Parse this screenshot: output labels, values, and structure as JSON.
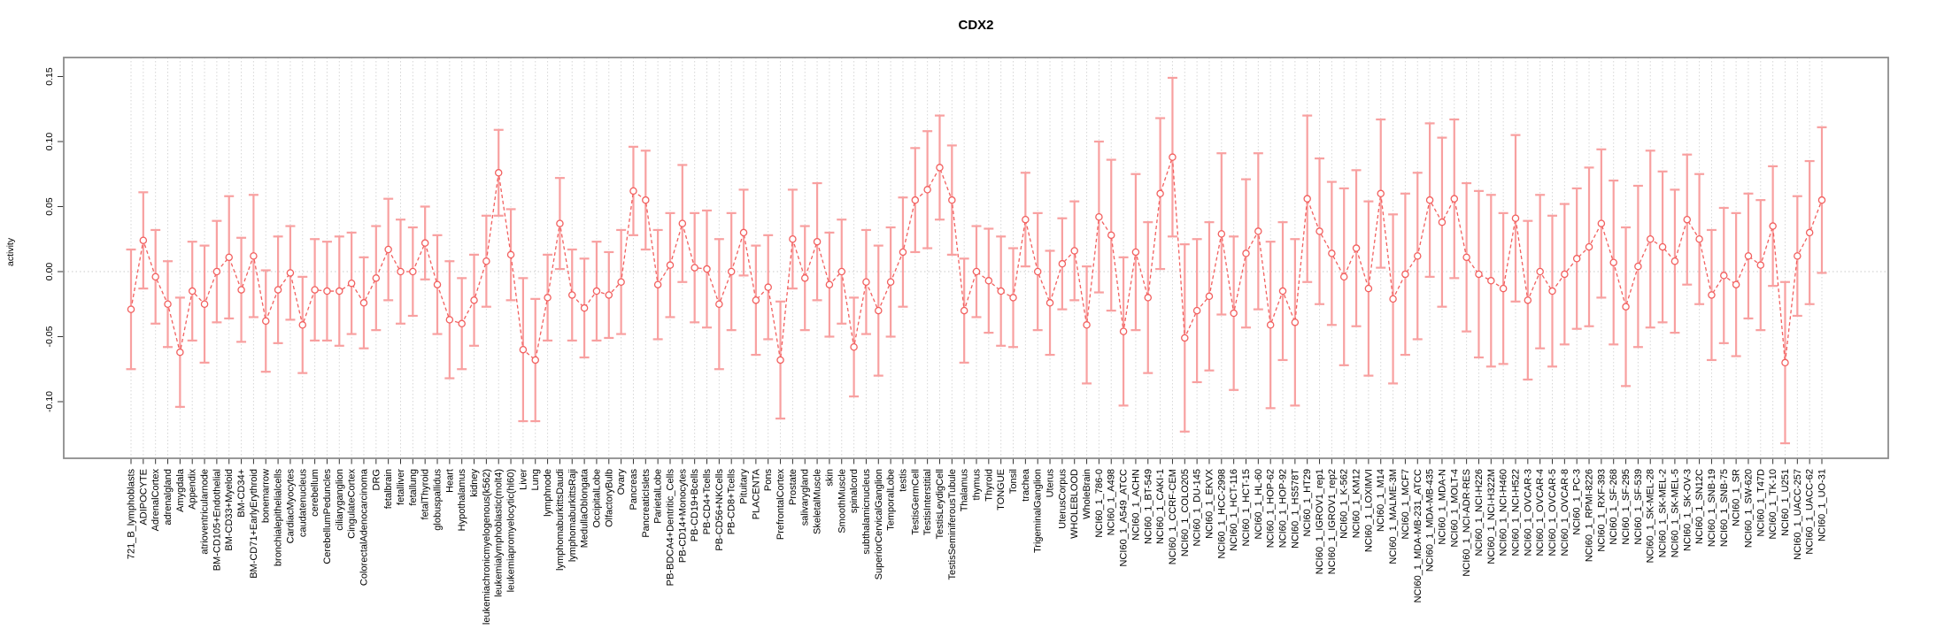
{
  "title": "CDX2",
  "chart_data": {
    "type": "line",
    "title": "CDX2",
    "xlabel": "",
    "ylabel": "activity",
    "ylim": [
      -0.142,
      0.162
    ],
    "yticks": [
      0.15,
      0.1,
      0.05,
      0.0,
      -0.05,
      -0.1
    ],
    "ytick_labels": [
      "0.15",
      "0.10",
      "0.05",
      "0.00",
      "-0.05",
      "-0.10"
    ],
    "grid": {
      "vertical_per_category": true,
      "zero_line": true,
      "style": "dotted"
    },
    "legend": "none",
    "x_tick_label_rotation": 90,
    "marker": "open-circle",
    "line_style": "dashed",
    "error_bars": true,
    "colors": {
      "series": "#f2605f",
      "error_bar": "#f8a0a0",
      "gridline": "#d6d6d6",
      "zero_line": "#c9c9c9",
      "box": "#8c8c8c",
      "tick": "#333333",
      "text": "#000000",
      "background": "#ffffff"
    },
    "categories": [
      "721_B_lymphoblasts",
      "ADIPOCYTE",
      "AdrenalCortex",
      "adrenalgland",
      "Amygdala",
      "Appendix",
      "atrioventricularnode",
      "BM-CD105+Endothelial",
      "BM-CD33+Myeloid",
      "BM-CD34+",
      "BM-CD71+EarlyErythroid",
      "bonemarrow",
      "bronchialepithelialcells",
      "CardiacMyocytes",
      "caudatenucleus",
      "cerebellum",
      "CerebellumPeduncles",
      "ciliaryganglion",
      "CingulateCortex",
      "ColorectalAdenocarcinoma",
      "DRG",
      "fetalbrain",
      "fetalliver",
      "fetallung",
      "fetalThyroid",
      "globuspallidus",
      "Heart",
      "Hypothalamus",
      "kidney",
      "leukemiachronicmyelogenous(k562)",
      "leukemialymphoblastic(molt4)",
      "leukemiapromyelocytic(hl60)",
      "Liver",
      "Lung",
      "lymphnode",
      "lymphomaburkittsDaudi",
      "lymphomaburkittsRaji",
      "MedullaOblongata",
      "OccipitalLobe",
      "OlfactoryBulb",
      "Ovary",
      "Pancreas",
      "PancreaticIslets",
      "ParietalLobe",
      "PB-BDCA4+Dentritic_Cells",
      "PB-CD14+Monocytes",
      "PB-CD19+Bcells",
      "PB-CD4+Tcells",
      "PB-CD56+NKCells",
      "PB-CD8+Tcells",
      "Pituitary",
      "PLACENTA",
      "Pons",
      "PrefrontalCortex",
      "Prostate",
      "salivarygland",
      "SkeletalMuscle",
      "skin",
      "SmoothMuscle",
      "spinalcord",
      "subthalamicnucleus",
      "SuperiorCervicalGanglion",
      "TemporalLobe",
      "testis",
      "TestisGermCell",
      "TestisInterstitial",
      "TestisLeydigCell",
      "TestisSeminiferousTubule",
      "Thalamus",
      "thymus",
      "Thyroid",
      "TONGUE",
      "Tonsil",
      "trachea",
      "TrigeminalGanglion",
      "Uterus",
      "UterusCorpus",
      "WHOLEBLOOD",
      "WholeBrain",
      "NCI60_1_786-0",
      "NCI60_1_A498",
      "NCI60_1_A549_ATCC",
      "NCI60_1_ACHN",
      "NCI60_1_BT-549",
      "NCI60_1_CAKI-1",
      "NCI60_1_CCRF-CEM",
      "NCI60_1_COLO205",
      "NCI60_1_DU-145",
      "NCI60_1_EKVX",
      "NCI60_1_HCC-2998",
      "NCI60_1_HCT-116",
      "NCI60_1_HCT-15",
      "NCI60_1_HL-60",
      "NCI60_1_HOP-62",
      "NCI60_1_HOP-92",
      "NCI60_1_HS578T",
      "NCI60_1_HT29",
      "NCI60_1_IGROV1_rep1",
      "NCI60_1_IGROV1_rep2",
      "NCI60_1_K-562",
      "NCI60_1_KM12",
      "NCI60_1_LOXIMVI",
      "NCI60_1_M14",
      "NCI60_1_MALME-3M",
      "NCI60_1_MCF7",
      "NCI60_1_MDA-MB-231_ATCC",
      "NCI60_1_MDA-MB-435",
      "NCI60_1_MDA-N",
      "NCI60_1_MOLT-4",
      "NCI60_1_NCI-ADR-RES",
      "NCI60_1_NCI-H226",
      "NCI60_1_NCI-H322M",
      "NCI60_1_NCI-H460",
      "NCI60_1_NCI-H522",
      "NCI60_1_OVCAR-3",
      "NCI60_1_OVCAR-4",
      "NCI60_1_OVCAR-5",
      "NCI60_1_OVCAR-8",
      "NCI60_1_PC-3",
      "NCI60_1_RPMI-8226",
      "NCI60_1_RXF-393",
      "NCI60_1_SF-268",
      "NCI60_1_SF-295",
      "NCI60_1_SF-539",
      "NCI60_1_SK-MEL-28",
      "NCI60_1_SK-MEL-2",
      "NCI60_1_SK-MEL-5",
      "NCI60_1_SK-OV-3",
      "NCI60_1_SN12C",
      "NCI60_1_SNB-19",
      "NCI60_1_SNB-75",
      "NCI60_1_SR",
      "NCI60_1_SW-620",
      "NCI60_1_T47D",
      "NCI60_1_TK-10",
      "NCI60_1_U251",
      "NCI60_1_UACC-257",
      "NCI60_1_UACC-62",
      "NCI60_1_UO-31"
    ],
    "series": [
      {
        "name": "activity",
        "values": [
          -0.029,
          0.024,
          -0.004,
          -0.025,
          -0.062,
          -0.015,
          -0.025,
          0.0,
          0.011,
          -0.014,
          0.012,
          -0.038,
          -0.014,
          -0.001,
          -0.041,
          -0.014,
          -0.015,
          -0.015,
          -0.009,
          -0.024,
          -0.005,
          0.017,
          0.0,
          0.0,
          0.022,
          -0.01,
          -0.037,
          -0.04,
          -0.022,
          0.008,
          0.076,
          0.013,
          -0.06,
          -0.068,
          -0.02,
          0.037,
          -0.018,
          -0.028,
          -0.015,
          -0.018,
          -0.008,
          0.062,
          0.055,
          -0.01,
          0.005,
          0.037,
          0.003,
          0.002,
          -0.025,
          0.0,
          0.03,
          -0.022,
          -0.012,
          -0.068,
          0.025,
          -0.005,
          0.023,
          -0.01,
          0.0,
          -0.058,
          -0.008,
          -0.03,
          -0.008,
          0.015,
          0.055,
          0.063,
          0.08,
          0.055,
          -0.03,
          0.0,
          -0.007,
          -0.015,
          -0.02,
          0.04,
          0.0,
          -0.024,
          0.006,
          0.016,
          -0.041,
          0.042,
          0.028,
          -0.046,
          0.015,
          -0.02,
          0.06,
          0.088,
          -0.051,
          -0.03,
          -0.019,
          0.029,
          -0.032,
          0.014,
          0.031,
          -0.041,
          -0.015,
          -0.039,
          0.056,
          0.031,
          0.014,
          -0.004,
          0.018,
          -0.013,
          0.06,
          -0.021,
          -0.002,
          0.012,
          0.055,
          0.038,
          0.056,
          0.011,
          -0.002,
          -0.007,
          -0.013,
          0.041,
          -0.022,
          0.0,
          -0.015,
          -0.002,
          0.01,
          0.019,
          0.037,
          0.007,
          -0.027,
          0.004,
          0.025,
          0.019,
          0.008,
          0.04,
          0.025,
          -0.018,
          -0.003,
          -0.01,
          0.012,
          0.005,
          0.035,
          -0.07,
          0.012,
          0.03,
          0.055
        ],
        "errors": [
          0.046,
          0.037,
          0.036,
          0.033,
          0.042,
          0.038,
          0.045,
          0.039,
          0.047,
          0.04,
          0.047,
          0.039,
          0.041,
          0.036,
          0.037,
          0.039,
          0.038,
          0.042,
          0.039,
          0.035,
          0.04,
          0.039,
          0.04,
          0.034,
          0.028,
          0.038,
          0.045,
          0.035,
          0.035,
          0.035,
          0.033,
          0.035,
          0.055,
          0.047,
          0.033,
          0.035,
          0.035,
          0.038,
          0.038,
          0.033,
          0.04,
          0.034,
          0.038,
          0.042,
          0.04,
          0.045,
          0.042,
          0.045,
          0.05,
          0.045,
          0.033,
          0.042,
          0.04,
          0.045,
          0.038,
          0.04,
          0.045,
          0.04,
          0.04,
          0.038,
          0.04,
          0.05,
          0.042,
          0.042,
          0.04,
          0.045,
          0.04,
          0.042,
          0.04,
          0.035,
          0.04,
          0.042,
          0.038,
          0.036,
          0.045,
          0.04,
          0.035,
          0.038,
          0.045,
          0.058,
          0.058,
          0.057,
          0.06,
          0.058,
          0.058,
          0.061,
          0.072,
          0.055,
          0.057,
          0.062,
          0.059,
          0.057,
          0.06,
          0.064,
          0.053,
          0.064,
          0.064,
          0.056,
          0.055,
          0.068,
          0.06,
          0.067,
          0.057,
          0.065,
          0.062,
          0.064,
          0.059,
          0.065,
          0.061,
          0.057,
          0.064,
          0.066,
          0.058,
          0.064,
          0.061,
          0.059,
          0.058,
          0.054,
          0.054,
          0.061,
          0.057,
          0.063,
          0.061,
          0.062,
          0.068,
          0.058,
          0.055,
          0.05,
          0.05,
          0.05,
          0.052,
          0.055,
          0.048,
          0.05,
          0.046,
          0.062,
          0.046,
          0.055,
          0.056
        ]
      }
    ]
  }
}
